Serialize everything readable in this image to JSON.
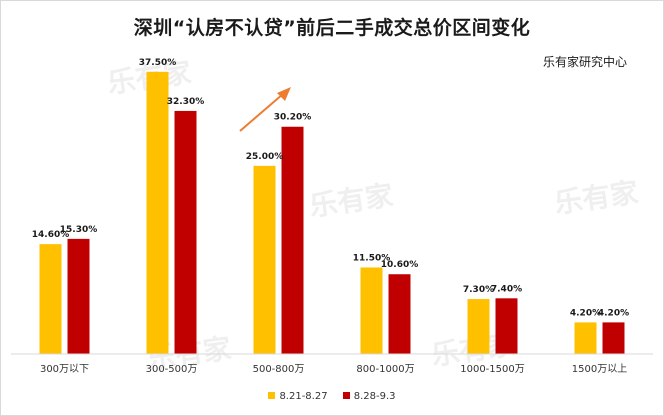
{
  "title": "深圳“认房不认贷”前后二手成交总价区间变化",
  "source": "乐有家研究中心",
  "colors": {
    "series1": "#FFC000",
    "series2": "#C00000"
  },
  "chart_data": {
    "type": "bar",
    "title": "深圳“认房不认贷”前后二手成交总价区间变化",
    "categories": [
      "300万以下",
      "300-500万",
      "500-800万",
      "800-1000万",
      "1000-1500万",
      "1500万以上"
    ],
    "series": [
      {
        "name": "8.21-8.27",
        "values": [
          14.6,
          37.5,
          25.0,
          11.5,
          7.3,
          4.2
        ],
        "labels": [
          "14.60%",
          "37.50%",
          "25.00%",
          "11.50%",
          "7.30%",
          "4.20%"
        ]
      },
      {
        "name": "8.28-9.3",
        "values": [
          15.3,
          32.3,
          30.2,
          10.6,
          7.4,
          4.2
        ],
        "labels": [
          "15.30%",
          "32.30%",
          "30.20%",
          "10.60%",
          "7.40%",
          "4.20%"
        ]
      }
    ],
    "ylim": [
      0,
      40
    ],
    "grid": false,
    "legend_position": "bottom",
    "annotation": "upward-arrow-over-500-800"
  }
}
